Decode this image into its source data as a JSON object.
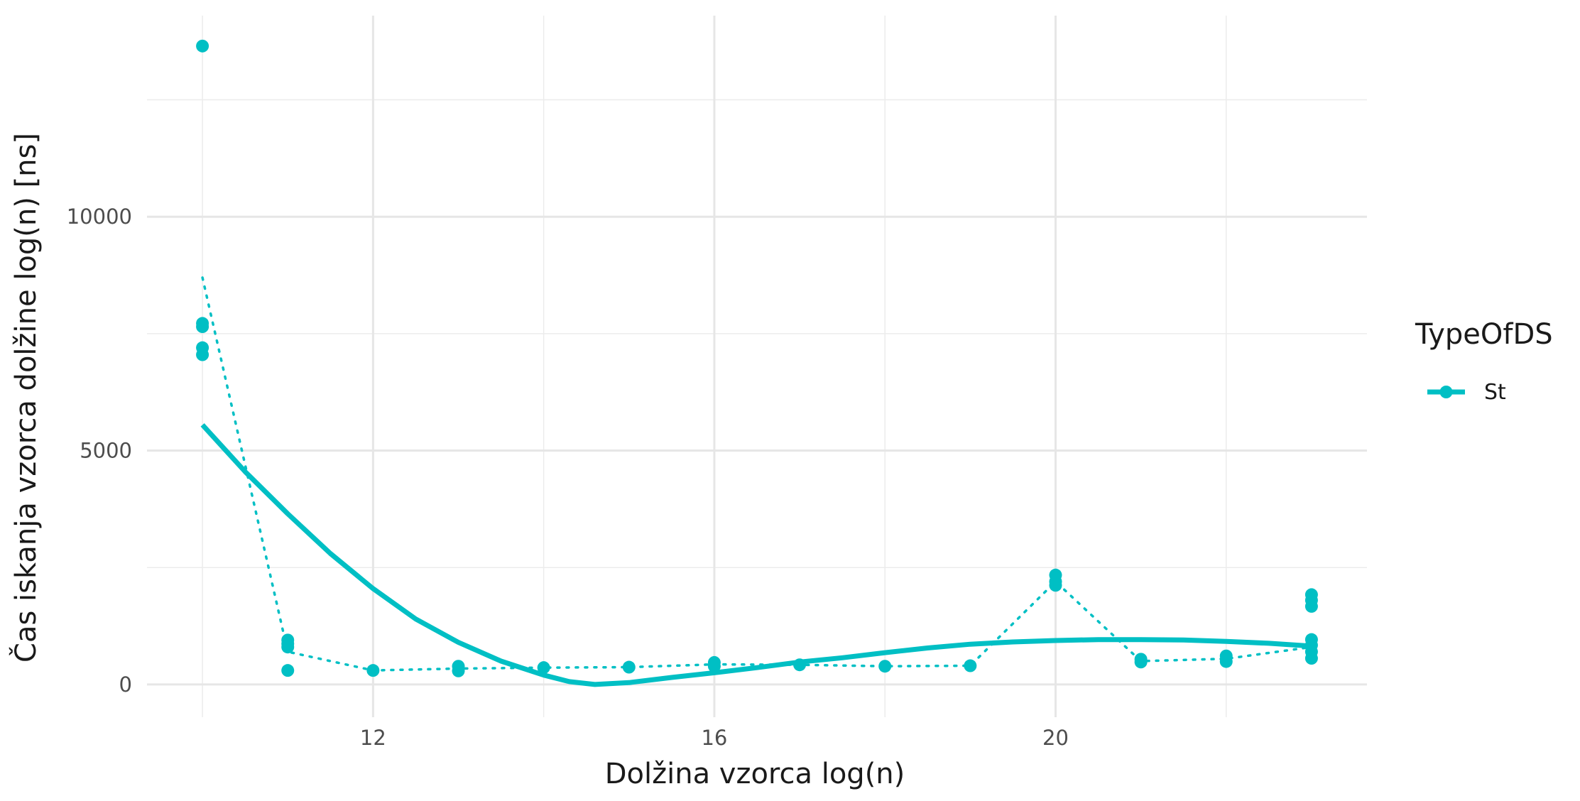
{
  "chart_data": {
    "type": "scatter",
    "xlabel": "Dolžina vzorca log(n)",
    "ylabel": "Čas iskanja vzorca dolžine log(n) [ns]",
    "xlim": [
      9.35,
      23.65
    ],
    "ylim": [
      -700,
      14300
    ],
    "x_ticks": [
      12,
      16,
      20
    ],
    "x_tick_labels": [
      "12",
      "16",
      "20"
    ],
    "x_minor_ticks": [
      10,
      14,
      18,
      22
    ],
    "y_ticks": [
      0,
      5000,
      10000
    ],
    "y_tick_labels": [
      "0",
      "5000",
      "10000"
    ],
    "y_minor_ticks": [
      2500,
      7500,
      12500
    ],
    "grid": true,
    "legend": {
      "title": "TypeOfDS",
      "position": "right",
      "entries": [
        {
          "label": "St",
          "color": "#00BFC4"
        }
      ]
    },
    "series": [
      {
        "name": "St",
        "color": "#00BFC4",
        "points": [
          {
            "x": 10,
            "y": 13650
          },
          {
            "x": 10,
            "y": 7720
          },
          {
            "x": 10,
            "y": 7650
          },
          {
            "x": 10,
            "y": 7200
          },
          {
            "x": 10,
            "y": 7050
          },
          {
            "x": 11,
            "y": 950
          },
          {
            "x": 11,
            "y": 870
          },
          {
            "x": 11,
            "y": 800
          },
          {
            "x": 11,
            "y": 300
          },
          {
            "x": 12,
            "y": 300
          },
          {
            "x": 13,
            "y": 390
          },
          {
            "x": 13,
            "y": 290
          },
          {
            "x": 14,
            "y": 360
          },
          {
            "x": 15,
            "y": 370
          },
          {
            "x": 16,
            "y": 470
          },
          {
            "x": 16,
            "y": 390
          },
          {
            "x": 17,
            "y": 420
          },
          {
            "x": 18,
            "y": 390
          },
          {
            "x": 19,
            "y": 400
          },
          {
            "x": 20,
            "y": 2340
          },
          {
            "x": 20,
            "y": 2200
          },
          {
            "x": 20,
            "y": 2120
          },
          {
            "x": 21,
            "y": 540
          },
          {
            "x": 21,
            "y": 480
          },
          {
            "x": 22,
            "y": 610
          },
          {
            "x": 22,
            "y": 490
          },
          {
            "x": 23,
            "y": 1920
          },
          {
            "x": 23,
            "y": 1800
          },
          {
            "x": 23,
            "y": 1670
          },
          {
            "x": 23,
            "y": 960
          },
          {
            "x": 23,
            "y": 840
          },
          {
            "x": 23,
            "y": 700
          },
          {
            "x": 23,
            "y": 560
          }
        ],
        "mean_line": [
          {
            "x": 10,
            "y": 8700
          },
          {
            "x": 11,
            "y": 700
          },
          {
            "x": 12,
            "y": 300
          },
          {
            "x": 13,
            "y": 340
          },
          {
            "x": 14,
            "y": 360
          },
          {
            "x": 15,
            "y": 370
          },
          {
            "x": 16,
            "y": 430
          },
          {
            "x": 17,
            "y": 420
          },
          {
            "x": 18,
            "y": 390
          },
          {
            "x": 19,
            "y": 400
          },
          {
            "x": 20,
            "y": 2200
          },
          {
            "x": 21,
            "y": 500
          },
          {
            "x": 22,
            "y": 550
          },
          {
            "x": 23,
            "y": 800
          }
        ],
        "smooth_line": [
          {
            "x": 10,
            "y": 5550
          },
          {
            "x": 10.5,
            "y": 4550
          },
          {
            "x": 11,
            "y": 3650
          },
          {
            "x": 11.5,
            "y": 2800
          },
          {
            "x": 12,
            "y": 2050
          },
          {
            "x": 12.5,
            "y": 1400
          },
          {
            "x": 13,
            "y": 900
          },
          {
            "x": 13.5,
            "y": 500
          },
          {
            "x": 14,
            "y": 200
          },
          {
            "x": 14.3,
            "y": 60
          },
          {
            "x": 14.6,
            "y": 0
          },
          {
            "x": 15,
            "y": 40
          },
          {
            "x": 15.5,
            "y": 150
          },
          {
            "x": 16,
            "y": 250
          },
          {
            "x": 16.5,
            "y": 360
          },
          {
            "x": 17,
            "y": 480
          },
          {
            "x": 17.5,
            "y": 570
          },
          {
            "x": 18,
            "y": 680
          },
          {
            "x": 18.5,
            "y": 780
          },
          {
            "x": 19,
            "y": 860
          },
          {
            "x": 19.5,
            "y": 910
          },
          {
            "x": 20,
            "y": 940
          },
          {
            "x": 20.5,
            "y": 960
          },
          {
            "x": 21,
            "y": 960
          },
          {
            "x": 21.5,
            "y": 950
          },
          {
            "x": 22,
            "y": 920
          },
          {
            "x": 22.5,
            "y": 880
          },
          {
            "x": 23,
            "y": 820
          }
        ]
      }
    ]
  }
}
